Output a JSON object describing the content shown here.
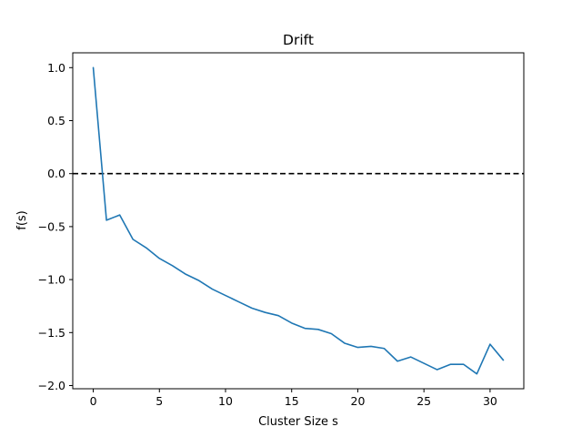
{
  "chart_data": {
    "type": "line",
    "title": "Drift",
    "xlabel": "Cluster Size s",
    "ylabel": "f(s)",
    "xlim": [
      -1.55,
      32.55
    ],
    "ylim": [
      -2.03,
      1.14
    ],
    "xticks": [
      0,
      5,
      10,
      15,
      20,
      25,
      30
    ],
    "yticks": [
      1.0,
      0.5,
      0.0,
      -0.5,
      -1.0,
      -1.5,
      -2.0
    ],
    "ytick_labels": [
      "1.0",
      "0.5",
      "0.0",
      "−0.5",
      "−1.0",
      "−1.5",
      "−2.0"
    ],
    "grid": false,
    "series": [
      {
        "color": "#1f77b4",
        "x": [
          0,
          1,
          2,
          3,
          4,
          5,
          6,
          7,
          8,
          9,
          10,
          11,
          12,
          13,
          14,
          15,
          16,
          17,
          18,
          19,
          20,
          21,
          22,
          23,
          24,
          25,
          26,
          27,
          28,
          29,
          30,
          31
        ],
        "values": [
          1.0,
          -0.44,
          -0.39,
          -0.62,
          -0.7,
          -0.8,
          -0.87,
          -0.95,
          -1.01,
          -1.09,
          -1.15,
          -1.21,
          -1.27,
          -1.31,
          -1.34,
          -1.41,
          -1.46,
          -1.47,
          -1.51,
          -1.6,
          -1.64,
          -1.63,
          -1.65,
          -1.77,
          -1.73,
          -1.79,
          -1.85,
          -1.8,
          -1.8,
          -1.89,
          -1.61,
          -1.76
        ]
      }
    ],
    "reference_line": {
      "y": 0.0,
      "style": "dashed",
      "color": "#000000"
    }
  }
}
